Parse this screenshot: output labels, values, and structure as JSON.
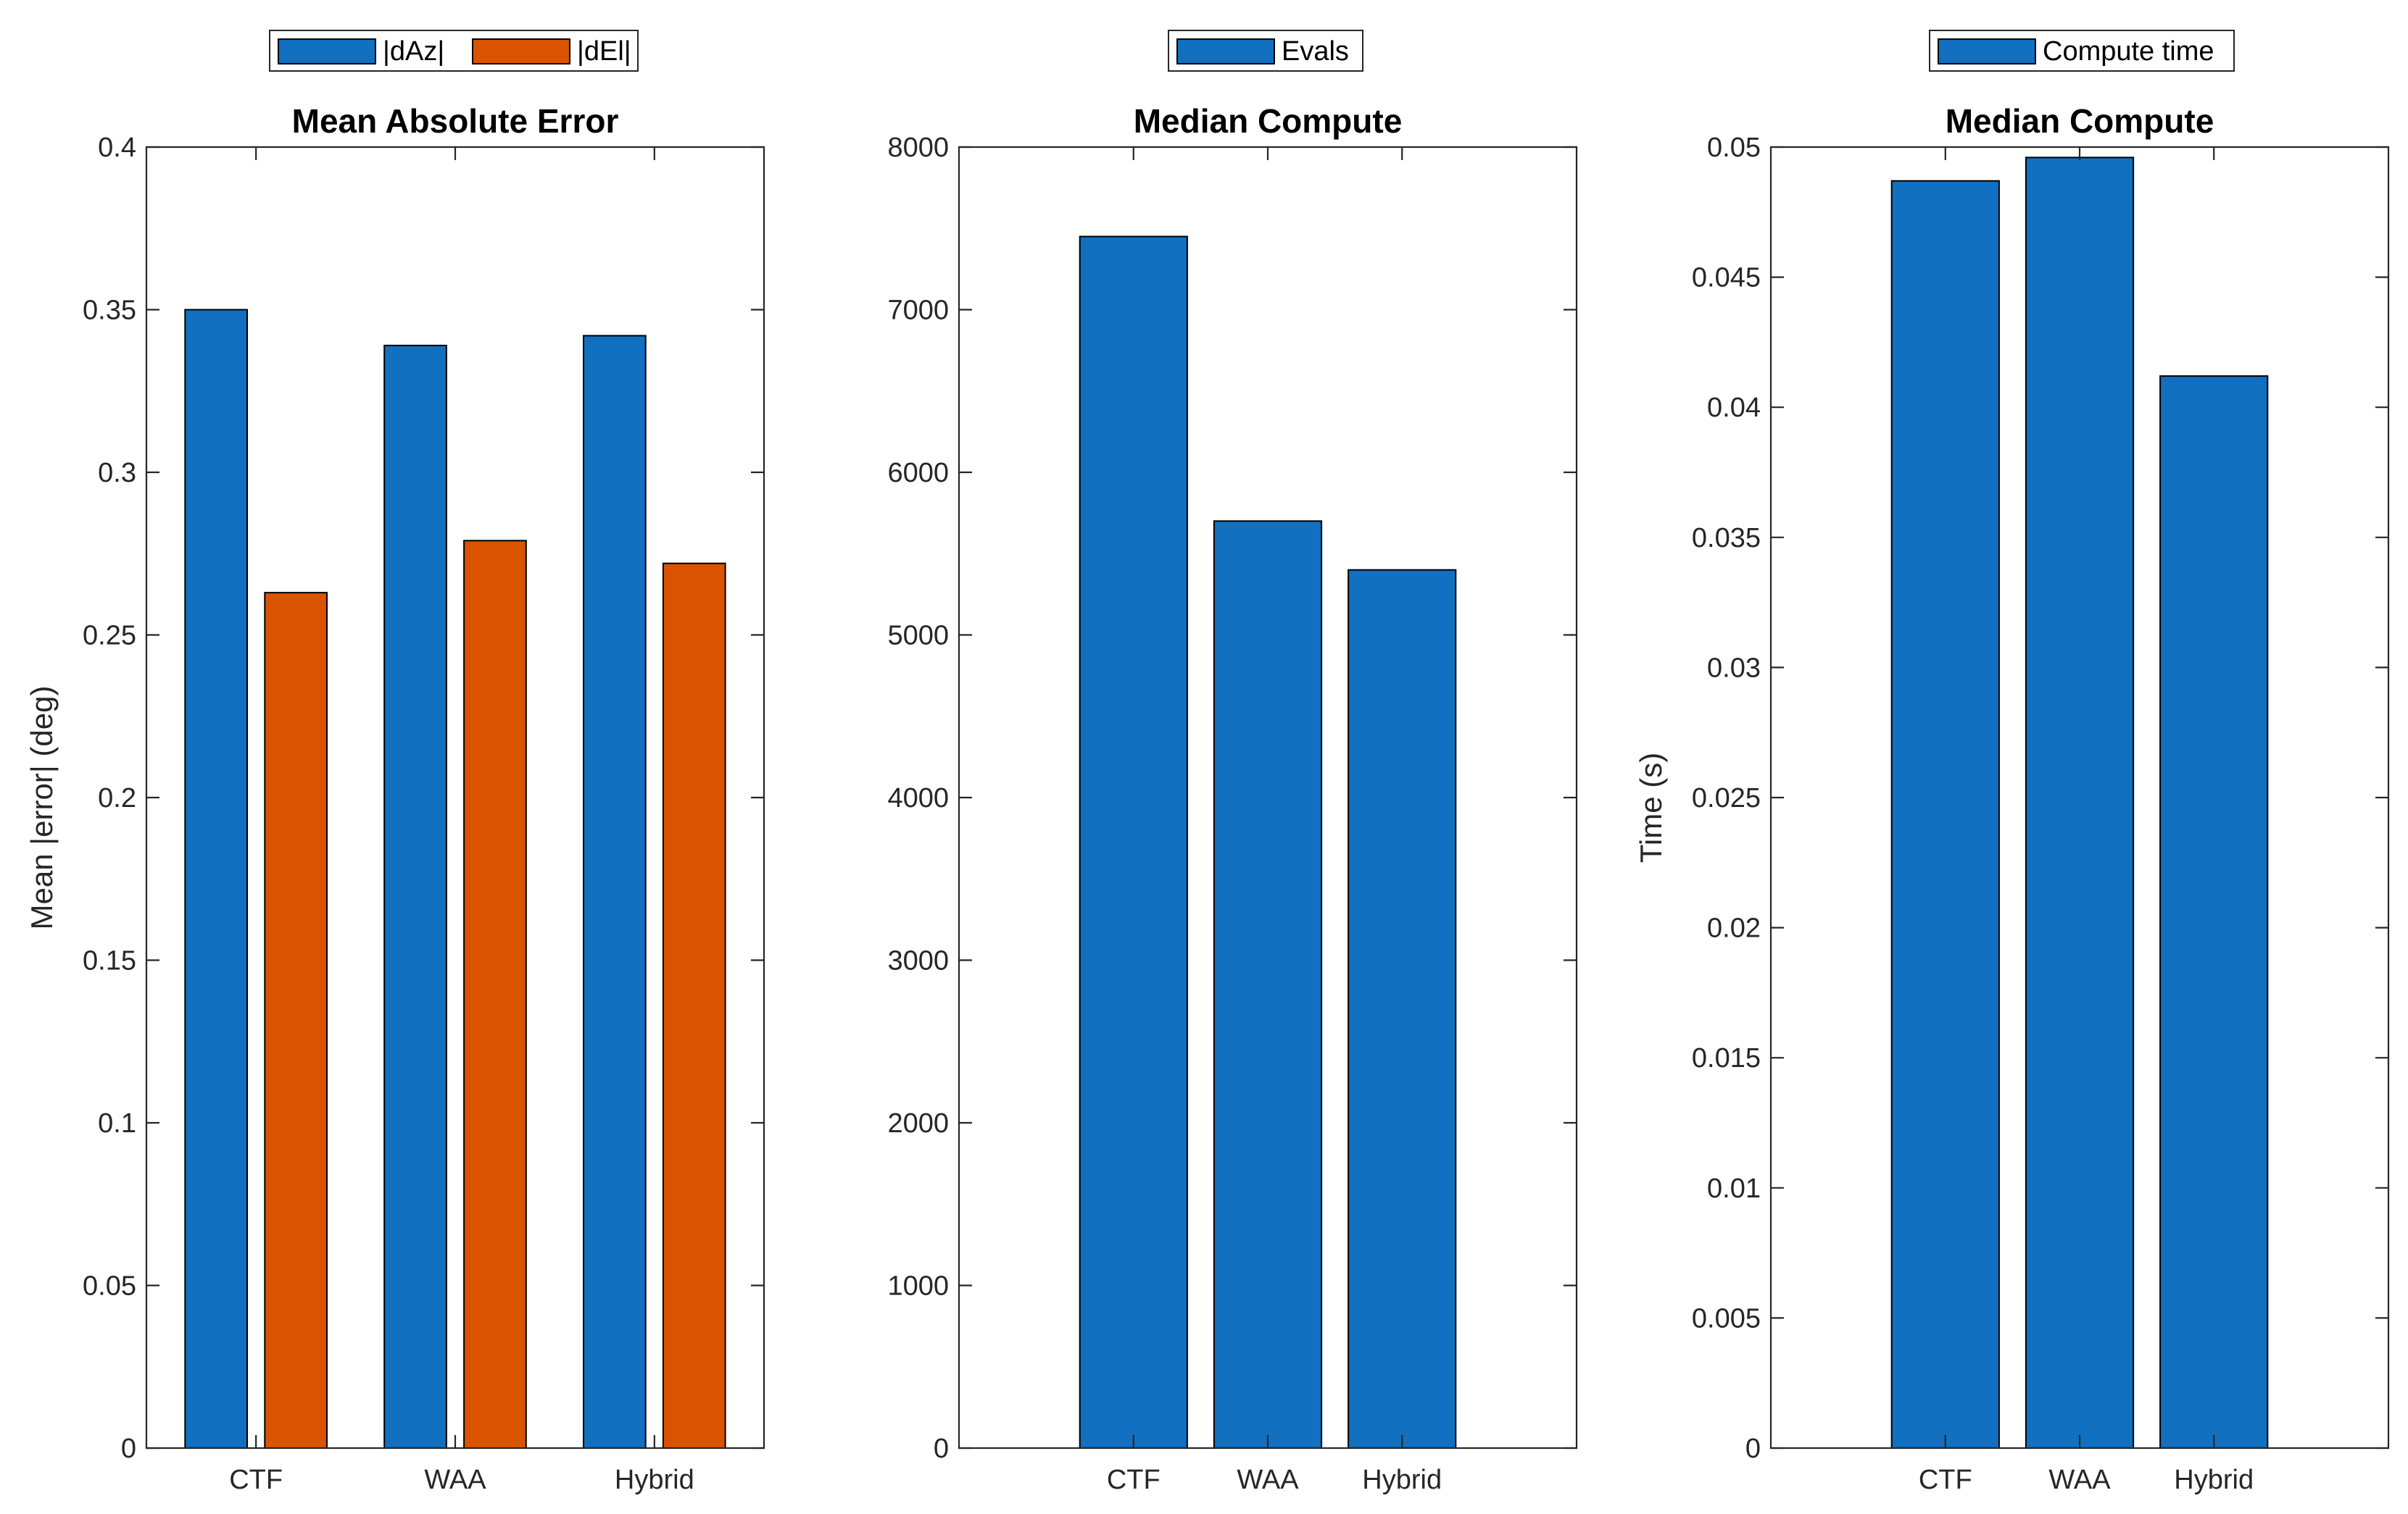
{
  "chart_data": [
    {
      "type": "bar",
      "title": "Mean Absolute Error",
      "xlabel": "",
      "ylabel": "Mean |error| (deg)",
      "categories": [
        "CTF",
        "WAA",
        "Hybrid"
      ],
      "series": [
        {
          "name": "|dAz|",
          "color": "#1170BF",
          "values": [
            0.35,
            0.339,
            0.342
          ]
        },
        {
          "name": "|dEl|",
          "color": "#D95300",
          "values": [
            0.263,
            0.279,
            0.272
          ]
        }
      ],
      "ylim": [
        0,
        0.4
      ],
      "yticks": [
        0,
        0.05,
        0.1,
        0.15,
        0.2,
        0.25,
        0.3,
        0.35,
        0.4
      ],
      "ytick_labels": [
        "0",
        "0.05",
        "0.1",
        "0.15",
        "0.2",
        "0.25",
        "0.3",
        "0.35",
        "0.4"
      ],
      "legend": "top-outside",
      "grid": false
    },
    {
      "type": "bar",
      "title": "Median Compute",
      "xlabel": "",
      "ylabel": "",
      "categories": [
        "CTF",
        "WAA",
        "Hybrid"
      ],
      "series": [
        {
          "name": "Evals",
          "color": "#1170BF",
          "values": [
            7450,
            5700,
            5400
          ]
        }
      ],
      "ylim": [
        0,
        8000
      ],
      "yticks": [
        0,
        1000,
        2000,
        3000,
        4000,
        5000,
        6000,
        7000,
        8000
      ],
      "ytick_labels": [
        "0",
        "1000",
        "2000",
        "3000",
        "4000",
        "5000",
        "6000",
        "7000",
        "8000"
      ],
      "legend": "top-outside",
      "grid": false
    },
    {
      "type": "bar",
      "title": "Median Compute",
      "xlabel": "",
      "ylabel": "Time (s)",
      "categories": [
        "CTF",
        "WAA",
        "Hybrid"
      ],
      "series": [
        {
          "name": "Compute time",
          "color": "#1170BF",
          "values": [
            0.0487,
            0.0496,
            0.0412
          ]
        }
      ],
      "ylim": [
        0,
        0.05
      ],
      "yticks": [
        0,
        0.005,
        0.01,
        0.015,
        0.02,
        0.025,
        0.03,
        0.035,
        0.04,
        0.045,
        0.05
      ],
      "ytick_labels": [
        "0",
        "0.005",
        "0.01",
        "0.015",
        "0.02",
        "0.025",
        "0.03",
        "0.035",
        "0.04",
        "0.045",
        "0.05"
      ],
      "legend": "top-outside",
      "grid": false
    }
  ]
}
